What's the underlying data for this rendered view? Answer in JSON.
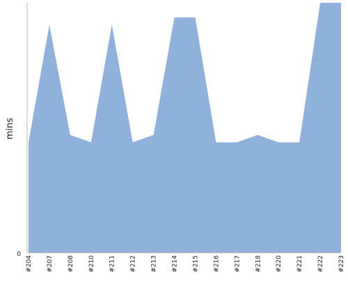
{
  "chart_data": {
    "type": "area",
    "title": "",
    "xlabel": "",
    "ylabel": "mins",
    "y_tick_labels": [
      "0"
    ],
    "ylim": [
      0,
      34
    ],
    "grid": false,
    "legend": "none",
    "color": "#8fb2dc",
    "axis_color": "#bbbbbb",
    "categories": [
      "#204",
      "#207",
      "#208",
      "#210",
      "#211",
      "#212",
      "#213",
      "#214",
      "#215",
      "#216",
      "#217",
      "#218",
      "#220",
      "#221",
      "#222",
      "#223"
    ],
    "series": [
      {
        "values": [
          15,
          31,
          16,
          15,
          31,
          15,
          16,
          32,
          32,
          15,
          15,
          16,
          15,
          15,
          34,
          34
        ]
      }
    ]
  }
}
